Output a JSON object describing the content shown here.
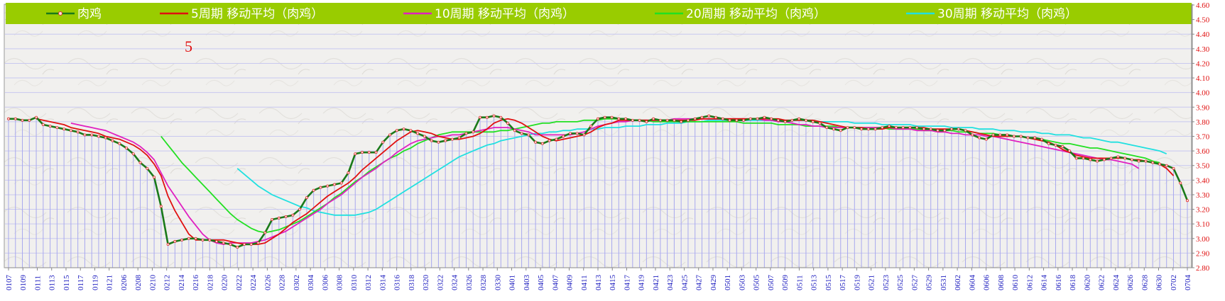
{
  "chart_data": {
    "type": "line",
    "annotation": "5",
    "ylim": [
      2.8,
      4.6
    ],
    "y_ticks": [
      "2.80",
      "2.90",
      "3.00",
      "3.10",
      "3.20",
      "3.30",
      "3.40",
      "3.50",
      "3.60",
      "3.70",
      "3.80",
      "3.90",
      "4.00",
      "4.10",
      "4.20",
      "4.30",
      "4.40",
      "4.50",
      "4.60"
    ],
    "x_tick_labels": [
      "0107",
      "0109",
      "0111",
      "0113",
      "0115",
      "0117",
      "0119",
      "0121",
      "0206",
      "0208",
      "0210",
      "0212",
      "0214",
      "0216",
      "0218",
      "0220",
      "0222",
      "0224",
      "0226",
      "0228",
      "0302",
      "0304",
      "0306",
      "0308",
      "0310",
      "0312",
      "0314",
      "0316",
      "0318",
      "0320",
      "0322",
      "0324",
      "0326",
      "0328",
      "0330",
      "0401",
      "0403",
      "0405",
      "0407",
      "0409",
      "0411",
      "0413",
      "0415",
      "0417",
      "0419",
      "0421",
      "0423",
      "0425",
      "0427",
      "0429",
      "0501",
      "0503",
      "0505",
      "0507",
      "0509",
      "0511",
      "0513",
      "0515",
      "0517",
      "0519",
      "0521",
      "0523",
      "0525",
      "0527",
      "0529",
      "0531",
      "0602",
      "0604",
      "0606",
      "0608",
      "0610",
      "0612",
      "0614",
      "0616",
      "0618",
      "0620",
      "0622",
      "0624",
      "0626",
      "0628",
      "0630",
      "0702",
      "0704"
    ],
    "series": [
      {
        "name": "肉鸡",
        "color": "#1a7a1a",
        "markers": true,
        "values": [
          3.82,
          3.82,
          3.81,
          3.81,
          3.83,
          3.78,
          3.77,
          3.76,
          3.75,
          3.74,
          3.73,
          3.71,
          3.71,
          3.7,
          3.69,
          3.67,
          3.65,
          3.62,
          3.58,
          3.52,
          3.48,
          3.42,
          3.22,
          2.96,
          2.98,
          2.99,
          3.0,
          3.0,
          2.99,
          2.99,
          2.98,
          2.97,
          2.96,
          2.94,
          2.96,
          2.96,
          2.97,
          3.04,
          3.13,
          3.14,
          3.15,
          3.16,
          3.2,
          3.28,
          3.33,
          3.35,
          3.36,
          3.37,
          3.38,
          3.45,
          3.58,
          3.59,
          3.59,
          3.59,
          3.66,
          3.71,
          3.74,
          3.75,
          3.74,
          3.72,
          3.7,
          3.67,
          3.66,
          3.67,
          3.68,
          3.69,
          3.72,
          3.73,
          3.83,
          3.83,
          3.84,
          3.83,
          3.79,
          3.74,
          3.72,
          3.71,
          3.66,
          3.65,
          3.67,
          3.68,
          3.7,
          3.72,
          3.72,
          3.71,
          3.77,
          3.82,
          3.83,
          3.83,
          3.82,
          3.82,
          3.81,
          3.81,
          3.8,
          3.82,
          3.81,
          3.81,
          3.81,
          3.8,
          3.81,
          3.82,
          3.83,
          3.84,
          3.83,
          3.82,
          3.81,
          3.81,
          3.81,
          3.82,
          3.82,
          3.83,
          3.82,
          3.81,
          3.8,
          3.81,
          3.82,
          3.81,
          3.8,
          3.79,
          3.76,
          3.75,
          3.74,
          3.76,
          3.76,
          3.75,
          3.75,
          3.75,
          3.76,
          3.77,
          3.76,
          3.76,
          3.76,
          3.76,
          3.75,
          3.75,
          3.74,
          3.74,
          3.75,
          3.75,
          3.74,
          3.71,
          3.69,
          3.68,
          3.71,
          3.71,
          3.71,
          3.7,
          3.7,
          3.69,
          3.69,
          3.68,
          3.65,
          3.64,
          3.63,
          3.6,
          3.55,
          3.55,
          3.54,
          3.53,
          3.54,
          3.55,
          3.56,
          3.55,
          3.54,
          3.53,
          3.53,
          3.52,
          3.51,
          3.5,
          3.48,
          3.38,
          3.26
        ]
      },
      {
        "name": "5周期 移动平均（肉鸡）",
        "color": "#e01010",
        "values": [
          null,
          null,
          null,
          null,
          3.82,
          3.81,
          3.8,
          3.79,
          3.78,
          3.76,
          3.75,
          3.74,
          3.73,
          3.72,
          3.7,
          3.69,
          3.68,
          3.66,
          3.64,
          3.61,
          3.57,
          3.51,
          3.43,
          3.29,
          3.19,
          3.11,
          3.03,
          2.99,
          2.99,
          2.99,
          2.99,
          2.99,
          2.98,
          2.97,
          2.96,
          2.96,
          2.96,
          2.97,
          3.0,
          3.03,
          3.07,
          3.11,
          3.14,
          3.17,
          3.21,
          3.25,
          3.29,
          3.32,
          3.35,
          3.38,
          3.42,
          3.47,
          3.51,
          3.55,
          3.59,
          3.63,
          3.67,
          3.7,
          3.73,
          3.74,
          3.73,
          3.72,
          3.7,
          3.69,
          3.68,
          3.68,
          3.69,
          3.7,
          3.72,
          3.75,
          3.79,
          3.81,
          3.82,
          3.81,
          3.79,
          3.76,
          3.73,
          3.7,
          3.68,
          3.67,
          3.68,
          3.69,
          3.7,
          3.71,
          3.73,
          3.76,
          3.78,
          3.79,
          3.81,
          3.81,
          3.81,
          3.81,
          3.81,
          3.81,
          3.81,
          3.81,
          3.81,
          3.81,
          3.81,
          3.81,
          3.82,
          3.82,
          3.82,
          3.82,
          3.82,
          3.82,
          3.82,
          3.82,
          3.82,
          3.82,
          3.82,
          3.82,
          3.81,
          3.81,
          3.81,
          3.81,
          3.81,
          3.8,
          3.79,
          3.78,
          3.77,
          3.76,
          3.76,
          3.76,
          3.75,
          3.75,
          3.75,
          3.76,
          3.76,
          3.76,
          3.76,
          3.76,
          3.76,
          3.75,
          3.75,
          3.75,
          3.75,
          3.75,
          3.74,
          3.73,
          3.72,
          3.71,
          3.7,
          3.7,
          3.7,
          3.7,
          3.7,
          3.69,
          3.68,
          3.67,
          3.66,
          3.64,
          3.61,
          3.59,
          3.57,
          3.56,
          3.55,
          3.55,
          3.55,
          3.55,
          3.55,
          3.55,
          3.54,
          3.54,
          3.53,
          3.52,
          3.51,
          3.48,
          3.43
        ]
      },
      {
        "name": "10周期 移动平均（肉鸡）",
        "color": "#e020c0",
        "values": [
          null,
          null,
          null,
          null,
          null,
          null,
          null,
          null,
          null,
          3.79,
          3.78,
          3.77,
          3.76,
          3.75,
          3.74,
          3.72,
          3.7,
          3.68,
          3.66,
          3.63,
          3.59,
          3.54,
          3.45,
          3.36,
          3.29,
          3.22,
          3.15,
          3.09,
          3.03,
          2.99,
          2.97,
          2.96,
          2.97,
          2.97,
          2.97,
          2.97,
          2.98,
          2.99,
          3.01,
          3.03,
          3.05,
          3.08,
          3.11,
          3.14,
          3.17,
          3.2,
          3.24,
          3.27,
          3.3,
          3.34,
          3.38,
          3.42,
          3.45,
          3.48,
          3.52,
          3.55,
          3.59,
          3.62,
          3.65,
          3.67,
          3.68,
          3.69,
          3.7,
          3.7,
          3.71,
          3.71,
          3.72,
          3.73,
          3.74,
          3.75,
          3.76,
          3.76,
          3.76,
          3.75,
          3.74,
          3.73,
          3.71,
          3.71,
          3.71,
          3.71,
          3.71,
          3.71,
          3.72,
          3.73,
          3.75,
          3.77,
          3.78,
          3.79,
          3.8,
          3.8,
          3.81,
          3.81,
          3.81,
          3.81,
          3.81,
          3.81,
          3.82,
          3.82,
          3.82,
          3.82,
          3.82,
          3.82,
          3.82,
          3.82,
          3.82,
          3.82,
          3.82,
          3.82,
          3.82,
          3.81,
          3.81,
          3.8,
          3.8,
          3.79,
          3.78,
          3.78,
          3.77,
          3.77,
          3.76,
          3.76,
          3.76,
          3.76,
          3.76,
          3.76,
          3.76,
          3.76,
          3.76,
          3.76,
          3.75,
          3.75,
          3.75,
          3.74,
          3.74,
          3.74,
          3.73,
          3.73,
          3.72,
          3.72,
          3.71,
          3.71,
          3.71,
          3.7,
          3.7,
          3.69,
          3.68,
          3.67,
          3.66,
          3.65,
          3.64,
          3.63,
          3.62,
          3.61,
          3.6,
          3.59,
          3.58,
          3.57,
          3.56,
          3.55,
          3.54,
          3.54,
          3.53,
          3.52,
          3.51,
          3.48
        ]
      },
      {
        "name": "20周期 移动平均（肉鸡）",
        "color": "#22e022",
        "values": [
          null,
          null,
          null,
          null,
          null,
          null,
          null,
          null,
          null,
          null,
          null,
          null,
          null,
          null,
          null,
          null,
          null,
          null,
          null,
          null,
          null,
          null,
          3.7,
          3.64,
          3.58,
          3.52,
          3.47,
          3.42,
          3.37,
          3.32,
          3.27,
          3.22,
          3.17,
          3.13,
          3.1,
          3.07,
          3.05,
          3.04,
          3.05,
          3.06,
          3.08,
          3.1,
          3.12,
          3.15,
          3.18,
          3.21,
          3.24,
          3.28,
          3.31,
          3.35,
          3.39,
          3.42,
          3.46,
          3.49,
          3.52,
          3.55,
          3.57,
          3.6,
          3.62,
          3.65,
          3.67,
          3.69,
          3.71,
          3.72,
          3.73,
          3.73,
          3.73,
          3.73,
          3.73,
          3.73,
          3.73,
          3.74,
          3.74,
          3.75,
          3.76,
          3.77,
          3.78,
          3.79,
          3.79,
          3.8,
          3.8,
          3.8,
          3.8,
          3.81,
          3.81,
          3.81,
          3.82,
          3.82,
          3.82,
          3.81,
          3.81,
          3.81,
          3.81,
          3.8,
          3.8,
          3.8,
          3.8,
          3.8,
          3.8,
          3.8,
          3.8,
          3.8,
          3.8,
          3.8,
          3.8,
          3.8,
          3.79,
          3.79,
          3.79,
          3.79,
          3.79,
          3.78,
          3.78,
          3.78,
          3.78,
          3.77,
          3.77,
          3.77,
          3.77,
          3.77,
          3.76,
          3.76,
          3.76,
          3.76,
          3.76,
          3.76,
          3.76,
          3.75,
          3.75,
          3.75,
          3.75,
          3.75,
          3.74,
          3.74,
          3.74,
          3.74,
          3.74,
          3.73,
          3.73,
          3.73,
          3.72,
          3.72,
          3.72,
          3.71,
          3.71,
          3.7,
          3.7,
          3.69,
          3.68,
          3.68,
          3.67,
          3.66,
          3.65,
          3.65,
          3.64,
          3.63,
          3.62,
          3.62,
          3.61,
          3.6,
          3.59,
          3.58,
          3.57,
          3.56,
          3.55,
          3.53,
          3.52
        ]
      },
      {
        "name": "30周期 移动平均（肉鸡）",
        "color": "#20e0e0",
        "values": [
          null,
          null,
          null,
          null,
          null,
          null,
          null,
          null,
          null,
          null,
          null,
          null,
          null,
          null,
          null,
          null,
          null,
          null,
          null,
          null,
          null,
          null,
          null,
          null,
          null,
          null,
          null,
          null,
          null,
          null,
          null,
          null,
          null,
          3.48,
          3.44,
          3.4,
          3.36,
          3.33,
          3.3,
          3.28,
          3.26,
          3.24,
          3.22,
          3.21,
          3.19,
          3.18,
          3.17,
          3.16,
          3.16,
          3.16,
          3.16,
          3.17,
          3.18,
          3.2,
          3.23,
          3.26,
          3.29,
          3.32,
          3.35,
          3.38,
          3.41,
          3.44,
          3.47,
          3.5,
          3.53,
          3.56,
          3.58,
          3.6,
          3.62,
          3.64,
          3.65,
          3.67,
          3.68,
          3.69,
          3.7,
          3.71,
          3.72,
          3.72,
          3.73,
          3.73,
          3.74,
          3.74,
          3.75,
          3.75,
          3.75,
          3.75,
          3.76,
          3.76,
          3.76,
          3.77,
          3.77,
          3.77,
          3.78,
          3.78,
          3.78,
          3.79,
          3.79,
          3.79,
          3.8,
          3.8,
          3.8,
          3.81,
          3.81,
          3.81,
          3.81,
          3.81,
          3.81,
          3.81,
          3.81,
          3.81,
          3.81,
          3.81,
          3.81,
          3.81,
          3.81,
          3.81,
          3.81,
          3.8,
          3.8,
          3.8,
          3.8,
          3.8,
          3.79,
          3.79,
          3.79,
          3.79,
          3.78,
          3.78,
          3.78,
          3.78,
          3.78,
          3.77,
          3.77,
          3.77,
          3.77,
          3.77,
          3.76,
          3.76,
          3.76,
          3.76,
          3.75,
          3.75,
          3.75,
          3.74,
          3.74,
          3.74,
          3.73,
          3.73,
          3.73,
          3.72,
          3.72,
          3.71,
          3.71,
          3.71,
          3.7,
          3.69,
          3.69,
          3.68,
          3.67,
          3.66,
          3.66,
          3.65,
          3.64,
          3.63,
          3.62,
          3.61,
          3.6,
          3.58
        ]
      }
    ]
  },
  "legend_bg": "#99cc00",
  "annotation_color": "#e01010",
  "tick_color_y": "#e01010",
  "tick_color_x": "#2020c0"
}
